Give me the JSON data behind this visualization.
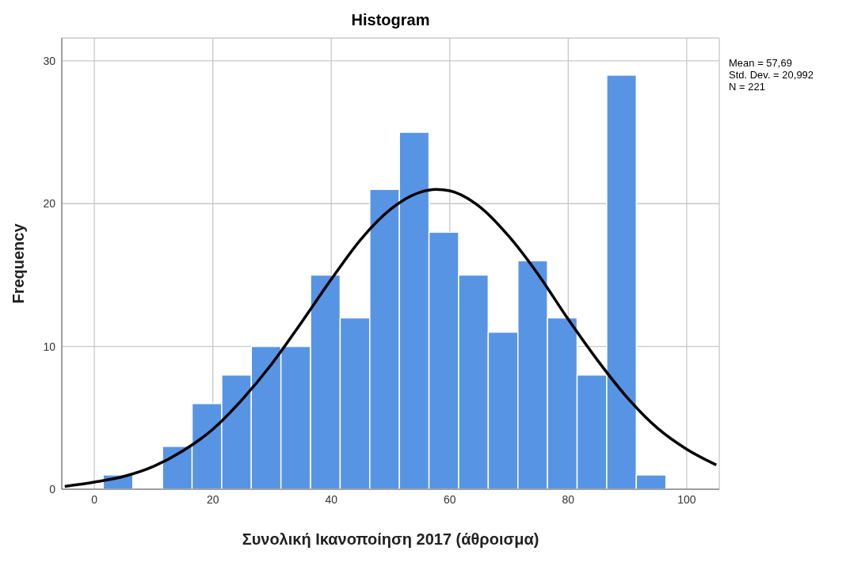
{
  "chart_data": {
    "type": "histogram",
    "title": "Histogram",
    "xlabel": "Συνολική Ικανοποίηση 2017 (άθροισμα)",
    "ylabel": "Frequency",
    "bins": [
      1.5,
      6.5,
      11.5,
      16.5,
      21.5,
      26.5,
      31.5,
      36.5,
      41.5,
      46.5,
      51.5,
      56.5,
      61.5,
      66.5,
      71.5,
      76.5,
      81.5,
      86.5,
      91.5,
      96.5
    ],
    "values": [
      1,
      0,
      3,
      6,
      8,
      10,
      10,
      15,
      12,
      21,
      25,
      18,
      15,
      11,
      16,
      12,
      8,
      29,
      1
    ],
    "color": "#5894e4",
    "series": [
      {
        "type": "line",
        "color": "#000000",
        "x": [
          -5,
          0,
          5,
          10,
          15,
          20,
          25,
          30,
          35,
          40,
          45,
          50,
          55,
          57.69,
          60,
          65,
          70,
          75,
          80,
          85,
          90,
          95,
          100,
          105
        ],
        "values": [
          0.2,
          0.5,
          0.9,
          1.6,
          2.7,
          4.2,
          6.3,
          8.8,
          11.7,
          14.7,
          17.5,
          19.6,
          20.8,
          21.0,
          20.9,
          19.8,
          17.7,
          15.0,
          11.9,
          9.0,
          6.4,
          4.3,
          2.8,
          1.7
        ]
      }
    ],
    "xlim": [
      -5.5,
      105.5
    ],
    "xticks": [
      0,
      20,
      40,
      60,
      80,
      100
    ],
    "ylim": [
      0,
      31.6
    ],
    "yticks": [
      0,
      10,
      20,
      30
    ],
    "grid": true,
    "annotations": [
      "Mean = 57,69",
      "Std. Dev. = 20,992",
      "N = 221"
    ]
  }
}
